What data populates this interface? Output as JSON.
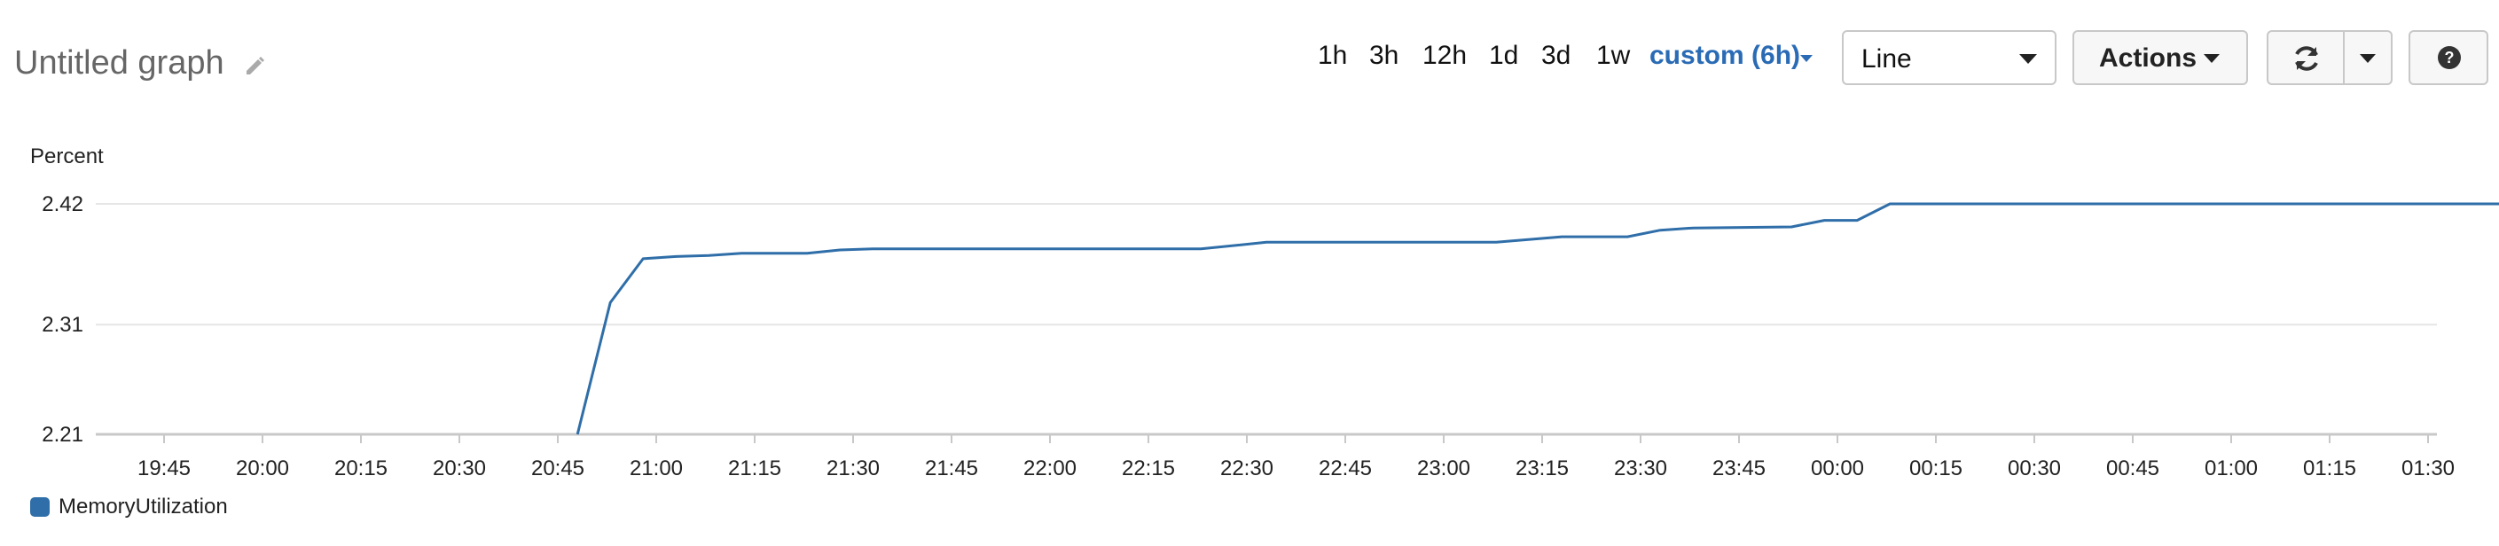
{
  "header": {
    "title": "Untitled graph",
    "ranges": [
      "1h",
      "3h",
      "12h",
      "1d",
      "3d",
      "1w"
    ],
    "custom_range": "custom (6h)",
    "chart_type_select": "Line",
    "actions_label": "Actions",
    "accent_color": "#2a6bb5"
  },
  "icons": {
    "edit": "pencil-icon",
    "refresh": "refresh-icon",
    "refresh_menu": "chevron-down-icon",
    "help": "help-icon"
  },
  "chart_data": {
    "type": "line",
    "ylabel": "Percent",
    "yticks": [
      2.21,
      2.31,
      2.42
    ],
    "ylim": [
      2.21,
      2.42
    ],
    "xtick_labels": [
      "19:45",
      "20:00",
      "20:15",
      "20:30",
      "20:45",
      "21:00",
      "21:15",
      "21:30",
      "21:45",
      "22:00",
      "22:15",
      "22:30",
      "22:45",
      "23:00",
      "23:15",
      "23:30",
      "23:45",
      "00:00",
      "00:15",
      "00:30",
      "00:45",
      "01:00",
      "01:15",
      "01:30"
    ],
    "grid": true,
    "legend_position": "bottom-left",
    "series": [
      {
        "name": "MemoryUtilization",
        "color": "#2f6ea8",
        "points": [
          [
            "20:48",
            2.21
          ],
          [
            "20:53",
            2.33
          ],
          [
            "20:58",
            2.37
          ],
          [
            "21:03",
            2.372
          ],
          [
            "21:08",
            2.373
          ],
          [
            "21:13",
            2.375
          ],
          [
            "21:23",
            2.375
          ],
          [
            "21:28",
            2.378
          ],
          [
            "21:33",
            2.379
          ],
          [
            "22:23",
            2.379
          ],
          [
            "22:33",
            2.385
          ],
          [
            "23:08",
            2.385
          ],
          [
            "23:18",
            2.39
          ],
          [
            "23:28",
            2.39
          ],
          [
            "23:33",
            2.396
          ],
          [
            "23:38",
            2.398
          ],
          [
            "23:53",
            2.399
          ],
          [
            "23:58",
            2.405
          ],
          [
            "00:03",
            2.405
          ],
          [
            "00:08",
            2.42
          ],
          [
            "01:48",
            2.42
          ]
        ]
      }
    ]
  }
}
